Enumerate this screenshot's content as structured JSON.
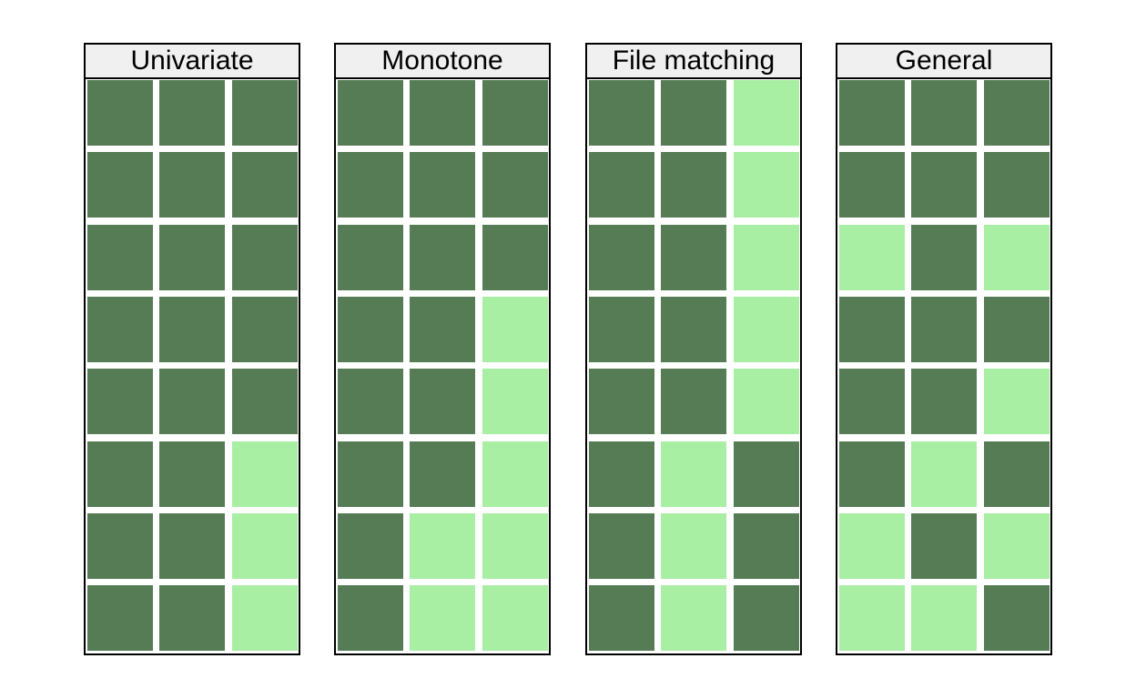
{
  "chart_data": {
    "type": "heatmap",
    "colors": {
      "observed": "#567c56",
      "missing": "#a8eea3"
    },
    "panels": [
      {
        "title": "Univariate",
        "grid": [
          [
            1,
            1,
            1
          ],
          [
            1,
            1,
            1
          ],
          [
            1,
            1,
            1
          ],
          [
            1,
            1,
            1
          ],
          [
            1,
            1,
            1
          ],
          [
            1,
            1,
            0
          ],
          [
            1,
            1,
            0
          ],
          [
            1,
            1,
            0
          ]
        ]
      },
      {
        "title": "Monotone",
        "grid": [
          [
            1,
            1,
            1
          ],
          [
            1,
            1,
            1
          ],
          [
            1,
            1,
            1
          ],
          [
            1,
            1,
            0
          ],
          [
            1,
            1,
            0
          ],
          [
            1,
            1,
            0
          ],
          [
            1,
            0,
            0
          ],
          [
            1,
            0,
            0
          ]
        ]
      },
      {
        "title": "File matching",
        "grid": [
          [
            1,
            1,
            0
          ],
          [
            1,
            1,
            0
          ],
          [
            1,
            1,
            0
          ],
          [
            1,
            1,
            0
          ],
          [
            1,
            1,
            0
          ],
          [
            1,
            0,
            1
          ],
          [
            1,
            0,
            1
          ],
          [
            1,
            0,
            1
          ]
        ]
      },
      {
        "title": "General",
        "grid": [
          [
            1,
            1,
            1
          ],
          [
            1,
            1,
            1
          ],
          [
            0,
            1,
            0
          ],
          [
            1,
            1,
            1
          ],
          [
            1,
            1,
            0
          ],
          [
            1,
            0,
            1
          ],
          [
            0,
            1,
            0
          ],
          [
            0,
            0,
            1
          ]
        ]
      }
    ]
  }
}
